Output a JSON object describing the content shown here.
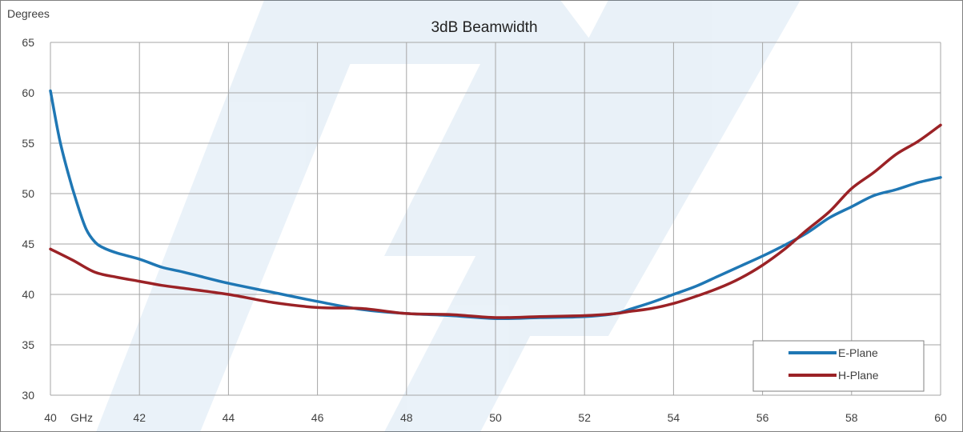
{
  "chart_data": {
    "type": "line",
    "title": "3dB Beamwidth",
    "ylabel": "Degrees",
    "xunit": "GHz",
    "xlim": [
      40,
      60
    ],
    "ylim": [
      30,
      65
    ],
    "xticks": [
      40,
      42,
      44,
      46,
      48,
      50,
      52,
      54,
      56,
      58,
      60
    ],
    "yticks": [
      30,
      35,
      40,
      45,
      50,
      55,
      60,
      65
    ],
    "grid": true,
    "legend_position": "bottom-right",
    "series": [
      {
        "name": "E-Plane",
        "color": "#1f77b4",
        "x": [
          40,
          40.2,
          40.4,
          40.6,
          40.8,
          41,
          41.2,
          41.5,
          42,
          42.5,
          43,
          44,
          45,
          46,
          47,
          48,
          49,
          50,
          51,
          52,
          52.7,
          53,
          53.5,
          54,
          54.5,
          55,
          55.5,
          56,
          56.5,
          57,
          57.5,
          58,
          58.5,
          59,
          59.5,
          60
        ],
        "values": [
          60.2,
          55.5,
          52,
          49,
          46.5,
          45.2,
          44.6,
          44.1,
          43.5,
          42.7,
          42.2,
          41.1,
          40.2,
          39.3,
          38.5,
          38.1,
          37.9,
          37.6,
          37.7,
          37.8,
          38.1,
          38.5,
          39.2,
          40,
          40.8,
          41.8,
          42.8,
          43.8,
          44.9,
          46.1,
          47.6,
          48.7,
          49.8,
          50.4,
          51.1,
          51.6
        ]
      },
      {
        "name": "H-Plane",
        "color": "#9b2226",
        "x": [
          40,
          40.5,
          41,
          41.5,
          42,
          42.5,
          43,
          44,
          45,
          46,
          47,
          48,
          49,
          50,
          51,
          52,
          52.7,
          53,
          53.5,
          54,
          54.5,
          55,
          55.5,
          56,
          56.5,
          57,
          57.5,
          58,
          58.5,
          59,
          59.5,
          60
        ],
        "values": [
          44.5,
          43.4,
          42.2,
          41.7,
          41.3,
          40.9,
          40.6,
          40,
          39.2,
          38.7,
          38.6,
          38.1,
          38,
          37.7,
          37.8,
          37.9,
          38.1,
          38.3,
          38.6,
          39.1,
          39.8,
          40.6,
          41.6,
          42.9,
          44.5,
          46.4,
          48.2,
          50.5,
          52.1,
          53.9,
          55.2,
          56.8
        ]
      }
    ]
  }
}
